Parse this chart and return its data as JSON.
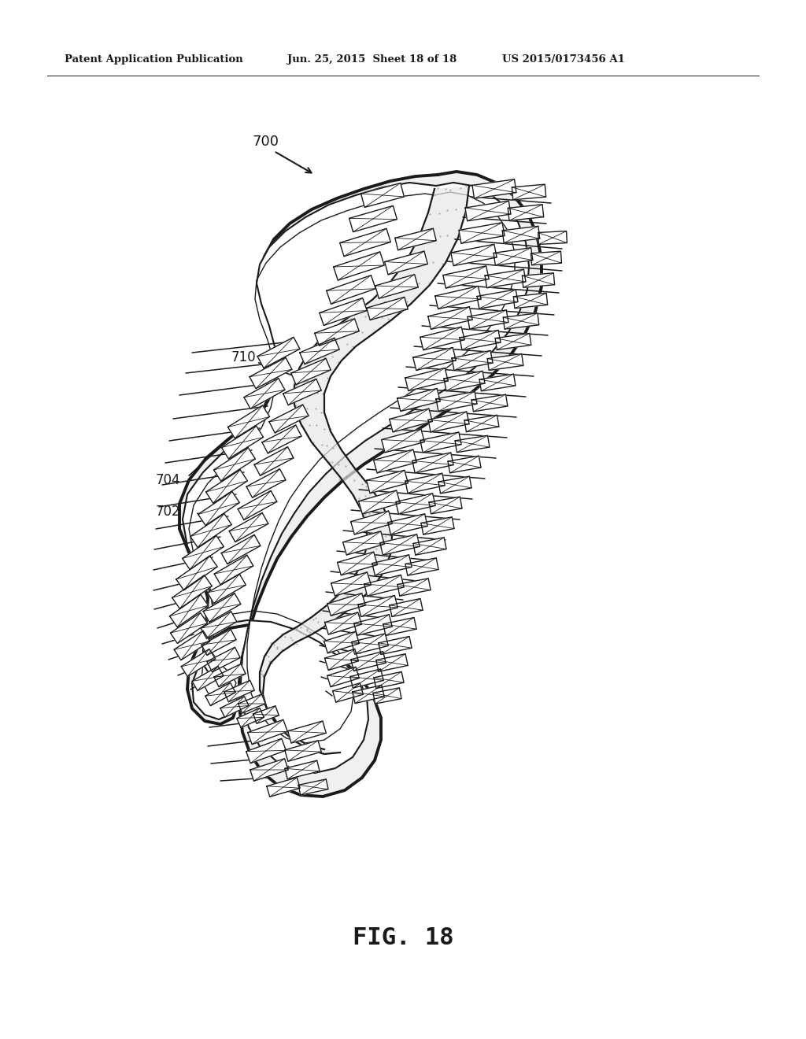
{
  "background_color": "#ffffff",
  "line_color": "#1a1a1a",
  "fill_light": "#f5f5f5",
  "fill_mid": "#e0e0e0",
  "fill_dark": "#c8c8c8",
  "dot_color": "#aaaaaa",
  "header_left": "Patent Application Publication",
  "header_mid": "Jun. 25, 2015  Sheet 18 of 18",
  "header_right": "US 2015/0173456 A1",
  "figure_label": "FIG. 18",
  "label_700": "700",
  "label_702": "702",
  "label_704": "704",
  "label_710": "710",
  "header_fs": 9.5,
  "fig_label_fs": 22,
  "callout_fs": 12
}
